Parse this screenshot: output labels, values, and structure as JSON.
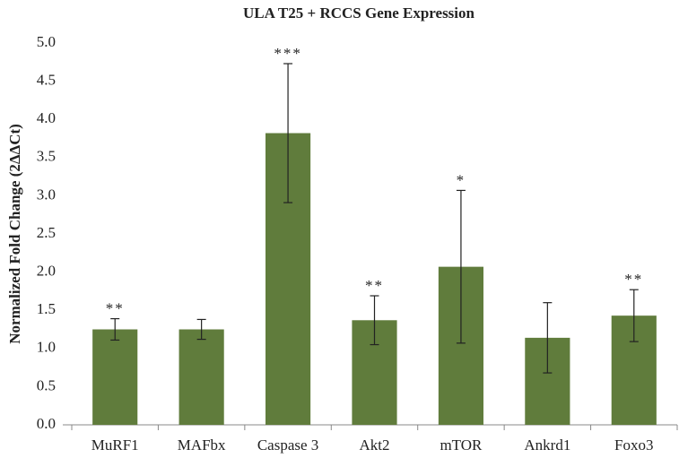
{
  "chart_data": {
    "type": "bar",
    "title": "ULA T25 + RCCS Gene Expression",
    "y_label": "Normalized Fold Change (2ΔΔCt)",
    "categories": [
      "MuRF1",
      "MAFbx",
      "Caspase 3",
      "Akt2",
      "mTOR",
      "Ankrd1",
      "Foxo3"
    ],
    "values": [
      1.25,
      1.25,
      3.82,
      1.37,
      2.07,
      1.14,
      1.43
    ],
    "errors": [
      0.14,
      0.13,
      0.91,
      0.32,
      1.0,
      0.46,
      0.34
    ],
    "annotations": [
      "**",
      null,
      "***",
      "**",
      "*",
      null,
      "**"
    ],
    "color": "#607c3c",
    "ylim": [
      0,
      5
    ],
    "yticks": [
      {
        "value": 0,
        "label": "0.0"
      },
      {
        "value": 0.5,
        "label": "0.5"
      },
      {
        "value": 1,
        "label": "1.0"
      },
      {
        "value": 1.5,
        "label": "1.5"
      },
      {
        "value": 2,
        "label": "2.0"
      },
      {
        "value": 2.5,
        "label": "2.5"
      },
      {
        "value": 3,
        "label": "3.0"
      },
      {
        "value": 3.5,
        "label": "3.5"
      },
      {
        "value": 4,
        "label": "4.0"
      },
      {
        "value": 4.5,
        "label": "4.5"
      },
      {
        "value": 5,
        "label": "5.0"
      }
    ],
    "grid": false
  }
}
